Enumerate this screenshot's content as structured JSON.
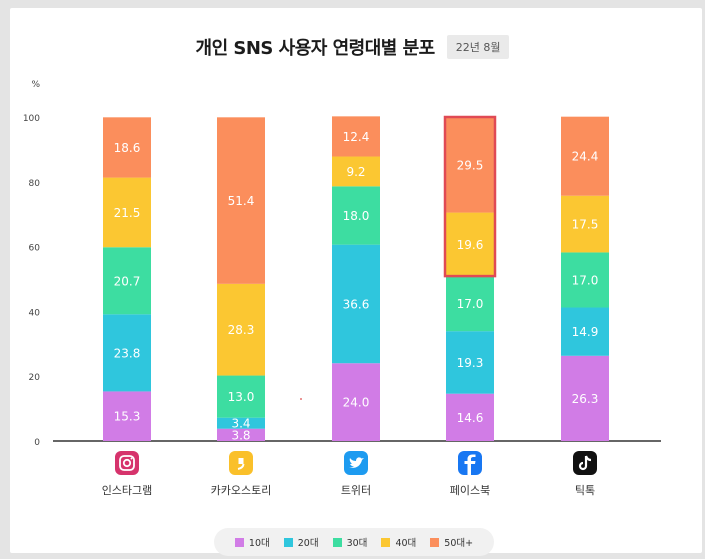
{
  "header": {
    "title": "개인 SNS 사용자 연령대별 분포",
    "date_badge": "22년 8월"
  },
  "colors": {
    "10대": "#d17ce6",
    "20대": "#2fc6dd",
    "30대": "#3ddda1",
    "40대": "#fbc732",
    "50대+": "#fb8e5c",
    "highlight_border": "#e04a54",
    "axis": "#333333"
  },
  "chart_data": {
    "type": "bar",
    "stacked": true,
    "categories": [
      "인스타그램",
      "카카오스토리",
      "트위터",
      "페이스북",
      "틱톡"
    ],
    "icons": [
      "instagram-icon",
      "kakaostory-icon",
      "twitter-icon",
      "facebook-icon",
      "tiktok-icon"
    ],
    "series": [
      {
        "name": "10대",
        "values": [
          15.3,
          3.8,
          24.0,
          14.6,
          26.3
        ]
      },
      {
        "name": "20대",
        "values": [
          23.8,
          3.4,
          36.6,
          19.3,
          14.9
        ]
      },
      {
        "name": "30대",
        "values": [
          20.7,
          13.0,
          18.0,
          17.0,
          17.0
        ]
      },
      {
        "name": "40대",
        "values": [
          21.5,
          28.3,
          9.2,
          19.6,
          17.5
        ]
      },
      {
        "name": "50대+",
        "values": [
          18.6,
          51.4,
          12.4,
          29.5,
          24.4
        ]
      }
    ],
    "ylabel": "%",
    "ylim": [
      0,
      100
    ],
    "yticks": [
      0,
      20,
      40,
      60,
      80,
      100
    ],
    "grid": false,
    "legend_position": "bottom",
    "highlight": {
      "category": "페이스북",
      "series": [
        "40대",
        "50대+"
      ]
    }
  }
}
